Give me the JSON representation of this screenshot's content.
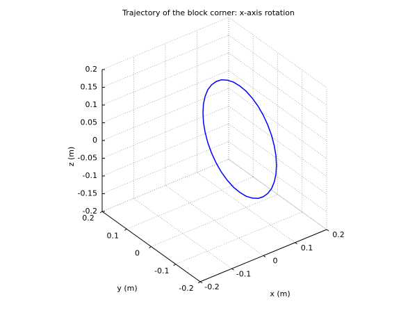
{
  "chart_data": {
    "type": "line3d",
    "title": "Trajectory of the block corner: x-axis rotation",
    "xlabel": "x (m)",
    "ylabel": "y (m)",
    "zlabel": "z (m)",
    "xlim": [
      -0.2,
      0.2
    ],
    "ylim": [
      -0.2,
      0.2
    ],
    "zlim": [
      -0.2,
      0.2
    ],
    "xticks": [
      -0.2,
      -0.1,
      0,
      0.1,
      0.2
    ],
    "yticks": [
      -0.2,
      -0.1,
      0,
      0.1,
      0.2
    ],
    "zticks": [
      -0.2,
      -0.15,
      -0.1,
      -0.05,
      0,
      0.05,
      0.1,
      0.15,
      0.2
    ],
    "grid": true,
    "series": [
      {
        "color": "#0000ff",
        "x": [
          0.08,
          0.08,
          0.08,
          0.08,
          0.08,
          0.08,
          0.08,
          0.08,
          0.08,
          0.08,
          0.08,
          0.08,
          0.08,
          0.08,
          0.08,
          0.08,
          0.08,
          0.08,
          0.08,
          0.08,
          0.08,
          0.08,
          0.08,
          0.08,
          0.08,
          0.08,
          0.08,
          0.08,
          0.08,
          0.08,
          0.08,
          0.08,
          0.08,
          0.08,
          0.08,
          0.08,
          0.08
        ],
        "y": [
          0.15,
          0.148,
          0.141,
          0.13,
          0.115,
          0.096,
          0.075,
          0.051,
          0.026,
          0,
          -0.026,
          -0.051,
          -0.075,
          -0.096,
          -0.115,
          -0.13,
          -0.141,
          -0.148,
          -0.15,
          -0.148,
          -0.141,
          -0.13,
          -0.115,
          -0.096,
          -0.075,
          -0.051,
          -0.026,
          0,
          0.026,
          0.051,
          0.075,
          0.096,
          0.115,
          0.13,
          0.141,
          0.148,
          0.15
        ],
        "z": [
          0,
          0.026,
          0.051,
          0.075,
          0.096,
          0.115,
          0.13,
          0.141,
          0.148,
          0.15,
          0.148,
          0.141,
          0.13,
          0.115,
          0.096,
          0.075,
          0.051,
          0.026,
          0,
          -0.026,
          -0.051,
          -0.075,
          -0.096,
          -0.115,
          -0.13,
          -0.141,
          -0.148,
          -0.15,
          -0.148,
          -0.141,
          -0.13,
          -0.115,
          -0.096,
          -0.075,
          -0.051,
          -0.026,
          0
        ]
      }
    ]
  }
}
